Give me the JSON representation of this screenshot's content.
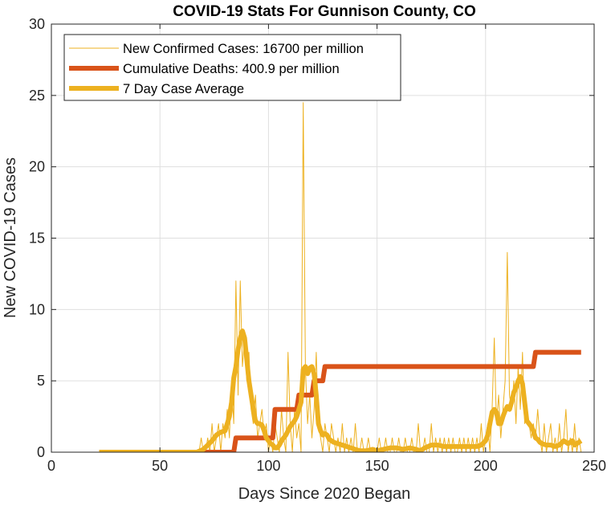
{
  "chart_data": {
    "type": "line",
    "title": "COVID-19 Stats For Gunnison County, CO",
    "xlabel": "Days Since 2020 Began",
    "ylabel": "New COVID-19 Cases",
    "xlim": [
      0,
      250
    ],
    "ylim": [
      0,
      30
    ],
    "xticks": [
      0,
      50,
      100,
      150,
      200,
      250
    ],
    "yticks": [
      0,
      5,
      10,
      15,
      20,
      25,
      30
    ],
    "grid": true,
    "legend_position": "top-left",
    "series": [
      {
        "name": "New Confirmed Cases: 16700 per million",
        "color": "#EDB120",
        "line_width": "thin",
        "points": [
          [
            22,
            0
          ],
          [
            30,
            0
          ],
          [
            40,
            0
          ],
          [
            50,
            0
          ],
          [
            60,
            0
          ],
          [
            68,
            0
          ],
          [
            69,
            1
          ],
          [
            70,
            0
          ],
          [
            71,
            0
          ],
          [
            72,
            1
          ],
          [
            73,
            0
          ],
          [
            74,
            2
          ],
          [
            75,
            0
          ],
          [
            76,
            1
          ],
          [
            77,
            2
          ],
          [
            78,
            0
          ],
          [
            79,
            2
          ],
          [
            80,
            1
          ],
          [
            81,
            3
          ],
          [
            82,
            1
          ],
          [
            83,
            5
          ],
          [
            84,
            2
          ],
          [
            85,
            12
          ],
          [
            86,
            4
          ],
          [
            87,
            12
          ],
          [
            88,
            6
          ],
          [
            89,
            8
          ],
          [
            90,
            5
          ],
          [
            91,
            7
          ],
          [
            92,
            3
          ],
          [
            93,
            2
          ],
          [
            94,
            4
          ],
          [
            95,
            1
          ],
          [
            96,
            2
          ],
          [
            97,
            3
          ],
          [
            98,
            1
          ],
          [
            99,
            2
          ],
          [
            100,
            0
          ],
          [
            101,
            1
          ],
          [
            102,
            0
          ],
          [
            103,
            2
          ],
          [
            104,
            1
          ],
          [
            105,
            0
          ],
          [
            106,
            3
          ],
          [
            107,
            1
          ],
          [
            108,
            0
          ],
          [
            109,
            7
          ],
          [
            110,
            2
          ],
          [
            111,
            0
          ],
          [
            112,
            3
          ],
          [
            113,
            1
          ],
          [
            114,
            2
          ],
          [
            115,
            0
          ],
          [
            116,
            24.5
          ],
          [
            117,
            6
          ],
          [
            118,
            2
          ],
          [
            119,
            4
          ],
          [
            120,
            1
          ],
          [
            121,
            3
          ],
          [
            122,
            7
          ],
          [
            123,
            2
          ],
          [
            124,
            1
          ],
          [
            125,
            0
          ],
          [
            126,
            2
          ],
          [
            127,
            1
          ],
          [
            128,
            0
          ],
          [
            129,
            2
          ],
          [
            130,
            1
          ],
          [
            131,
            0
          ],
          [
            132,
            1
          ],
          [
            133,
            0
          ],
          [
            134,
            2
          ],
          [
            135,
            0
          ],
          [
            136,
            1
          ],
          [
            137,
            0
          ],
          [
            138,
            1
          ],
          [
            139,
            0
          ],
          [
            140,
            2
          ],
          [
            141,
            0
          ],
          [
            142,
            0
          ],
          [
            143,
            1
          ],
          [
            144,
            0
          ],
          [
            145,
            0
          ],
          [
            146,
            1
          ],
          [
            147,
            0
          ],
          [
            148,
            0
          ],
          [
            150,
            0
          ],
          [
            151,
            1
          ],
          [
            152,
            0
          ],
          [
            153,
            0
          ],
          [
            154,
            1
          ],
          [
            155,
            0
          ],
          [
            156,
            0
          ],
          [
            157,
            1
          ],
          [
            158,
            0
          ],
          [
            159,
            0
          ],
          [
            160,
            1
          ],
          [
            161,
            0
          ],
          [
            162,
            0
          ],
          [
            163,
            1
          ],
          [
            164,
            0
          ],
          [
            165,
            0
          ],
          [
            166,
            1
          ],
          [
            167,
            0
          ],
          [
            168,
            0
          ],
          [
            169,
            2
          ],
          [
            170,
            0
          ],
          [
            171,
            0
          ],
          [
            172,
            1
          ],
          [
            173,
            0
          ],
          [
            174,
            0
          ],
          [
            175,
            2
          ],
          [
            176,
            0
          ],
          [
            177,
            1
          ],
          [
            178,
            0
          ],
          [
            179,
            1
          ],
          [
            180,
            0
          ],
          [
            181,
            1
          ],
          [
            182,
            0
          ],
          [
            183,
            1
          ],
          [
            184,
            0
          ],
          [
            185,
            1
          ],
          [
            186,
            0
          ],
          [
            187,
            0
          ],
          [
            188,
            1
          ],
          [
            189,
            0
          ],
          [
            190,
            1
          ],
          [
            191,
            0
          ],
          [
            192,
            1
          ],
          [
            193,
            0
          ],
          [
            194,
            1
          ],
          [
            195,
            0
          ],
          [
            196,
            1
          ],
          [
            197,
            0
          ],
          [
            198,
            2
          ],
          [
            199,
            0
          ],
          [
            200,
            1
          ],
          [
            201,
            2
          ],
          [
            202,
            0
          ],
          [
            203,
            3
          ],
          [
            204,
            8
          ],
          [
            205,
            2
          ],
          [
            206,
            4
          ],
          [
            207,
            1
          ],
          [
            208,
            3
          ],
          [
            209,
            5
          ],
          [
            210,
            14
          ],
          [
            211,
            4
          ],
          [
            212,
            3
          ],
          [
            213,
            5
          ],
          [
            214,
            2
          ],
          [
            215,
            6
          ],
          [
            216,
            3
          ],
          [
            217,
            7
          ],
          [
            218,
            2
          ],
          [
            219,
            3
          ],
          [
            220,
            2
          ],
          [
            221,
            1
          ],
          [
            222,
            2
          ],
          [
            223,
            1
          ],
          [
            224,
            3
          ],
          [
            225,
            1
          ],
          [
            226,
            0
          ],
          [
            227,
            2
          ],
          [
            228,
            0
          ],
          [
            229,
            1
          ],
          [
            230,
            2
          ],
          [
            231,
            0
          ],
          [
            232,
            1
          ],
          [
            233,
            0
          ],
          [
            234,
            2
          ],
          [
            235,
            0
          ],
          [
            236,
            1
          ],
          [
            237,
            3
          ],
          [
            238,
            0
          ],
          [
            239,
            1
          ],
          [
            240,
            0
          ],
          [
            241,
            2
          ],
          [
            242,
            0
          ],
          [
            243,
            1
          ],
          [
            244,
            0
          ]
        ]
      },
      {
        "name": "Cumulative Deaths: 400.9 per million",
        "color": "#D95319",
        "line_width": "thick",
        "points": [
          [
            22,
            0
          ],
          [
            84,
            0
          ],
          [
            85,
            1
          ],
          [
            102,
            1
          ],
          [
            103,
            3
          ],
          [
            113,
            3
          ],
          [
            114,
            4
          ],
          [
            120,
            4
          ],
          [
            121,
            5
          ],
          [
            125,
            5
          ],
          [
            126,
            6
          ],
          [
            222,
            6
          ],
          [
            223,
            7
          ],
          [
            244,
            7
          ]
        ]
      },
      {
        "name": "7 Day Case Average",
        "color": "#EDB120",
        "line_width": "thick",
        "points": [
          [
            22,
            0
          ],
          [
            40,
            0
          ],
          [
            60,
            0
          ],
          [
            67,
            0
          ],
          [
            70,
            0.2
          ],
          [
            72,
            0.5
          ],
          [
            74,
            0.8
          ],
          [
            76,
            1.2
          ],
          [
            78,
            1.4
          ],
          [
            80,
            1.5
          ],
          [
            81,
            2
          ],
          [
            82,
            2.5
          ],
          [
            83,
            3.5
          ],
          [
            84,
            5.2
          ],
          [
            85,
            6
          ],
          [
            86,
            7.2
          ],
          [
            87,
            8
          ],
          [
            88,
            8.5
          ],
          [
            89,
            8
          ],
          [
            90,
            6.5
          ],
          [
            91,
            5
          ],
          [
            92,
            4
          ],
          [
            93,
            3
          ],
          [
            94,
            2.2
          ],
          [
            95,
            2
          ],
          [
            96,
            2
          ],
          [
            97,
            1.9
          ],
          [
            98,
            1.5
          ],
          [
            99,
            1
          ],
          [
            100,
            0.8
          ],
          [
            101,
            0.6
          ],
          [
            102,
            0.5
          ],
          [
            103,
            0.3
          ],
          [
            104,
            0.3
          ],
          [
            105,
            0.5
          ],
          [
            106,
            0.8
          ],
          [
            107,
            1
          ],
          [
            108,
            1.2
          ],
          [
            109,
            1.5
          ],
          [
            110,
            1.8
          ],
          [
            111,
            2
          ],
          [
            112,
            2.2
          ],
          [
            113,
            2.5
          ],
          [
            114,
            3
          ],
          [
            115,
            3.5
          ],
          [
            116,
            5.8
          ],
          [
            117,
            6
          ],
          [
            118,
            5.5
          ],
          [
            119,
            5.9
          ],
          [
            120,
            6
          ],
          [
            121,
            5.5
          ],
          [
            122,
            4
          ],
          [
            123,
            2
          ],
          [
            124,
            1.5
          ],
          [
            125,
            1.2
          ],
          [
            126,
            1.3
          ],
          [
            127,
            1.2
          ],
          [
            128,
            0.9
          ],
          [
            129,
            0.8
          ],
          [
            130,
            0.7
          ],
          [
            132,
            0.6
          ],
          [
            134,
            0.5
          ],
          [
            136,
            0.4
          ],
          [
            138,
            0.3
          ],
          [
            140,
            0.2
          ],
          [
            142,
            0.1
          ],
          [
            145,
            0.1
          ],
          [
            148,
            0.2
          ],
          [
            150,
            0.1
          ],
          [
            153,
            0.2
          ],
          [
            156,
            0.3
          ],
          [
            159,
            0.3
          ],
          [
            162,
            0.2
          ],
          [
            165,
            0.3
          ],
          [
            168,
            0.2
          ],
          [
            170,
            0.1
          ],
          [
            172,
            0.3
          ],
          [
            175,
            0.5
          ],
          [
            178,
            0.5
          ],
          [
            181,
            0.4
          ],
          [
            184,
            0.4
          ],
          [
            187,
            0.4
          ],
          [
            190,
            0.4
          ],
          [
            193,
            0.4
          ],
          [
            196,
            0.4
          ],
          [
            198,
            0.5
          ],
          [
            200,
            0.8
          ],
          [
            201,
            1.2
          ],
          [
            202,
            2
          ],
          [
            203,
            2.8
          ],
          [
            204,
            3
          ],
          [
            205,
            2.8
          ],
          [
            206,
            2
          ],
          [
            207,
            2
          ],
          [
            208,
            2.5
          ],
          [
            209,
            2.9
          ],
          [
            210,
            3.2
          ],
          [
            211,
            3
          ],
          [
            212,
            3.5
          ],
          [
            213,
            4.2
          ],
          [
            214,
            4.5
          ],
          [
            215,
            5
          ],
          [
            216,
            5.3
          ],
          [
            217,
            4.8
          ],
          [
            218,
            3.5
          ],
          [
            219,
            2.2
          ],
          [
            220,
            2
          ],
          [
            221,
            1.8
          ],
          [
            222,
            1.5
          ],
          [
            223,
            1
          ],
          [
            224,
            0.9
          ],
          [
            225,
            0.7
          ],
          [
            226,
            0.6
          ],
          [
            228,
            0.5
          ],
          [
            230,
            0.5
          ],
          [
            232,
            0.4
          ],
          [
            234,
            0.5
          ],
          [
            236,
            0.8
          ],
          [
            238,
            0.6
          ],
          [
            240,
            0.8
          ],
          [
            241,
            0.5
          ],
          [
            242,
            0.6
          ],
          [
            244,
            0.8
          ]
        ]
      }
    ]
  }
}
